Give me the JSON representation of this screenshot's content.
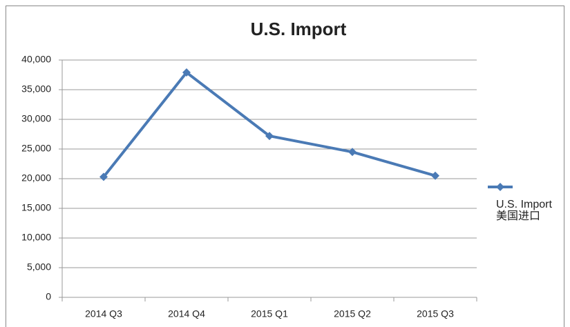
{
  "chart_data": {
    "type": "line",
    "title": "U.S. Import",
    "categories": [
      "2014 Q3",
      "2014 Q4",
      "2015 Q1",
      "2015 Q2",
      "2015 Q3"
    ],
    "series": [
      {
        "name": "U.S. Import 美国进口",
        "color": "#4a7ab5",
        "values": [
          20300,
          37900,
          27200,
          24500,
          20500
        ]
      }
    ],
    "ylim": [
      0,
      40000
    ],
    "yticks": [
      0,
      {
        "value": 5000,
        "label": "5,000"
      },
      {
        "value": 10000,
        "label": "10,000"
      },
      {
        "value": 15000,
        "label": "15,000"
      },
      {
        "value": 20000,
        "label": "20,000"
      },
      {
        "value": 25000,
        "label": "25,000"
      },
      {
        "value": 30000,
        "label": "30,000"
      },
      {
        "value": 35000,
        "label": "35,000"
      },
      {
        "value": 40000,
        "label": "40,000"
      }
    ],
    "grid": true,
    "legend": "right"
  }
}
